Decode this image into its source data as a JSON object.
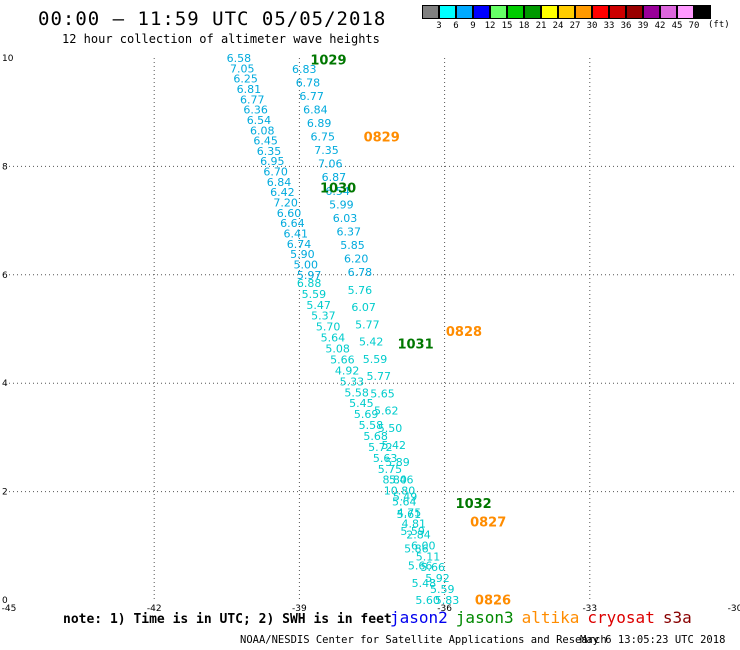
{
  "header": {
    "title": "00:00 — 11:59 UTC 05/05/2018",
    "subtitle": "12 hour collection of altimeter wave heights"
  },
  "colorbar": {
    "colors": [
      "#808080",
      "#00ffff",
      "#00aaff",
      "#0000ff",
      "#66ff66",
      "#00cc00",
      "#009900",
      "#ffff00",
      "#ffcc00",
      "#ff9900",
      "#ff0000",
      "#cc0000",
      "#990000",
      "#990099",
      "#dd66dd",
      "#ff99ff",
      "#000000"
    ],
    "labels": [
      "3",
      "6",
      "9",
      "12",
      "15",
      "18",
      "21",
      "24",
      "27",
      "30",
      "33",
      "36",
      "39",
      "42",
      "45",
      "70"
    ],
    "units": "(ft)"
  },
  "footer": {
    "note": "note: 1) Time is in UTC; 2) SWH is in feet",
    "legend": [
      {
        "name": "jason2",
        "color": "#0000ee"
      },
      {
        "name": "jason3",
        "color": "#008800"
      },
      {
        "name": "altika",
        "color": "#ff8c00"
      },
      {
        "name": "cryosat",
        "color": "#dd0000"
      },
      {
        "name": "s3a",
        "color": "#880000"
      }
    ],
    "credit": "NOAA/NESDIS Center for Satellite Applications and Research",
    "timestamp": "May  6 13:05:23 UTC 2018"
  },
  "chart_data": {
    "type": "scatter",
    "xlim": [
      -45,
      -30
    ],
    "ylim": [
      0,
      10
    ],
    "xticks": [
      "-45",
      "-42",
      "-39",
      "-36",
      "-33",
      "-30"
    ],
    "yticks": [
      "0",
      "2",
      "4",
      "6",
      "8",
      "10"
    ],
    "grid": true,
    "track_colors": {
      "a": "#00aadd",
      "b": "#00aadd",
      "c": "#00cccc"
    },
    "pass_labels": [
      {
        "text": "1029",
        "x": -38.4,
        "y": 9.97,
        "color": "#007700"
      },
      {
        "text": "0829",
        "x": -37.3,
        "y": 8.55,
        "color": "#ff8c00"
      },
      {
        "text": "1030",
        "x": -38.2,
        "y": 7.61,
        "color": "#007700"
      },
      {
        "text": "0828",
        "x": -35.6,
        "y": 4.96,
        "color": "#ff8c00"
      },
      {
        "text": "1031",
        "x": -36.6,
        "y": 4.73,
        "color": "#007700"
      },
      {
        "text": "1032",
        "x": -35.4,
        "y": 1.79,
        "color": "#007700"
      },
      {
        "text": "0827",
        "x": -35.1,
        "y": 1.45,
        "color": "#ff8c00"
      },
      {
        "text": "0826",
        "x": -35.0,
        "y": 0.01,
        "color": "#ff8c00"
      }
    ],
    "track_a": {
      "x_start": -40.25,
      "y_start": 10.0,
      "x_end": -38.8,
      "y_end": 6.0,
      "values": [
        "6.58",
        "7.05",
        "6.25",
        "6.81",
        "6.77",
        "6.36",
        "6.54",
        "6.08",
        "6.45",
        "6.35",
        "6.95",
        "6.70",
        "6.84",
        "6.42",
        "7.20",
        "6.60",
        "6.64",
        "6.41",
        "6.74",
        "5.90",
        "5.00",
        "5.97"
      ]
    },
    "track_b": {
      "x_start": -38.9,
      "y_start": 9.8,
      "x_end": -37.75,
      "y_end": 6.05,
      "values": [
        "6.83",
        "6.78",
        "6.77",
        "6.84",
        "6.89",
        "6.75",
        "7.35",
        "7.06",
        "6.87",
        "6.54",
        "5.99",
        "6.03",
        "6.37",
        "5.85",
        "6.20",
        "6.78"
      ]
    },
    "track_c": {
      "x_start": -38.8,
      "y_start": 5.85,
      "x_end": -35.95,
      "y_end": 0.0,
      "values": [
        "6.88",
        "5.59",
        "5.47",
        "5.37",
        "5.70",
        "5.64",
        "5.08",
        "5.66",
        "4.92",
        "5.33",
        "5.58",
        "5.45",
        "5.69",
        "5.58",
        "5.68",
        "5.72",
        "5.63",
        "5.75",
        "8.80",
        "10.80",
        "5.64",
        "4.75",
        "4.81",
        "2.84",
        "6.00",
        "5.11",
        "5.66",
        "5.92",
        "5.59",
        "5.83"
      ]
    },
    "track_d": {
      "x_start": -37.75,
      "y_start": 5.72,
      "x_end": -36.35,
      "y_end": 0.0,
      "values": [
        "5.76",
        "6.07",
        "5.77",
        "5.42",
        "5.59",
        "5.77",
        "5.65",
        "5.62",
        "5.50",
        "5.42",
        "5.89",
        "5.46",
        "5.49",
        "5.61",
        "5.59",
        "5.86",
        "5.66",
        "5.48",
        "5.60"
      ]
    }
  }
}
